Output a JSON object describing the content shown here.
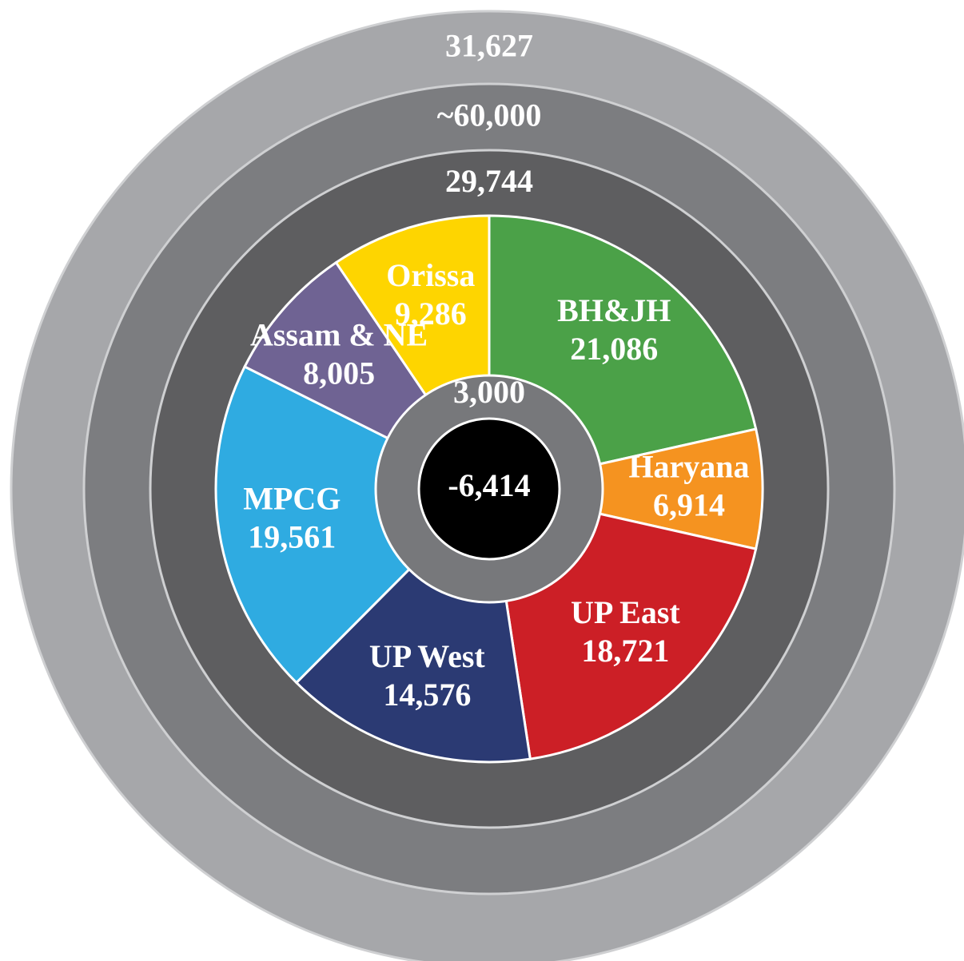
{
  "chart_data": {
    "type": "pie",
    "rings": [
      {
        "value": 31627,
        "value_label": "31,627",
        "color": "#a6a7aa"
      },
      {
        "value": 60000,
        "value_label": "~60,000",
        "color": "#7c7d80"
      },
      {
        "value": 29744,
        "value_label": "29,744",
        "color": "#5e5e60"
      }
    ],
    "inner_ring": {
      "value": 3000,
      "value_label": "3,000",
      "color": "#77787b"
    },
    "center": {
      "value": -6414,
      "value_label": "-6,414",
      "color": "#000000"
    },
    "categories": [
      "BH&JH",
      "Haryana",
      "UP East",
      "UP West",
      "MPCG",
      "Assam & NE",
      "Orissa"
    ],
    "values": [
      21086,
      6914,
      18721,
      14576,
      19561,
      8005,
      9286
    ],
    "value_labels": [
      "21,086",
      "6,914",
      "18,721",
      "14,576",
      "19,561",
      "8,005",
      "9,286"
    ],
    "colors": [
      "#4ba148",
      "#f59320",
      "#cc1f26",
      "#2b3a73",
      "#2fabe1",
      "#6f6393",
      "#fed500"
    ]
  }
}
